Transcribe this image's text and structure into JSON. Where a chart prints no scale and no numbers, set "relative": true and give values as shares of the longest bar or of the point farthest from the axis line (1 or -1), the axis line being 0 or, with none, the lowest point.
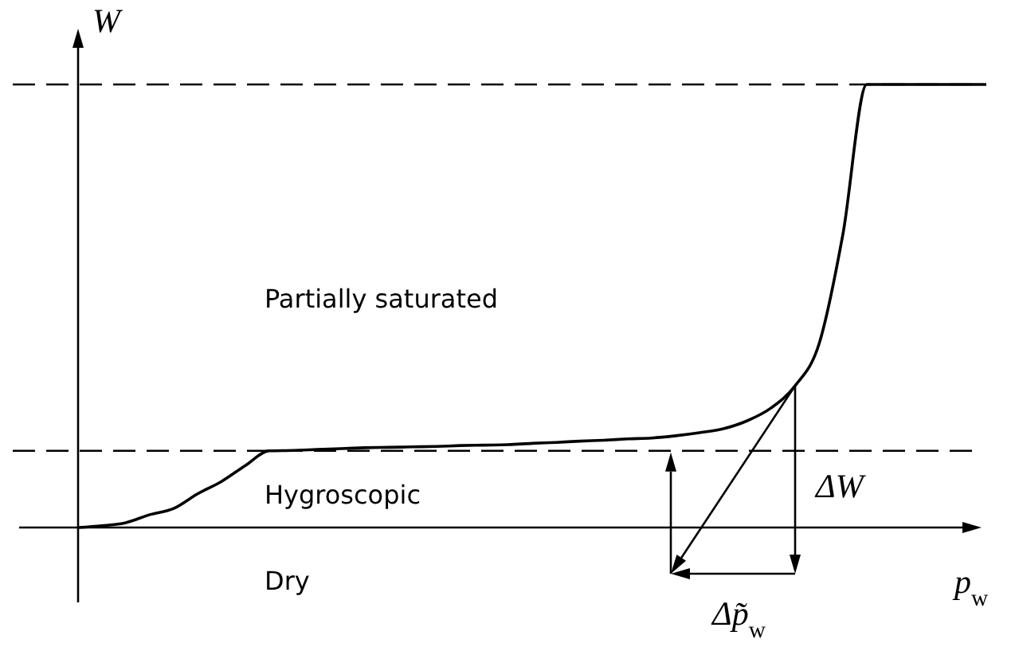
{
  "chart_data": {
    "type": "line",
    "relative": true,
    "xlabel": "p$_{w}$",
    "ylabel": "W",
    "categories": [
      null,
      null,
      null,
      null,
      null,
      null,
      null,
      null,
      null,
      null,
      null,
      null,
      null,
      null,
      null,
      null,
      null,
      null,
      null,
      null,
      null,
      null,
      null,
      null,
      null,
      null,
      null,
      null,
      null,
      null,
      null,
      null,
      null,
      null,
      null,
      null,
      null,
      null,
      null
    ],
    "series": [
      {
        "color": "#000000",
        "values": [
          0,
          0.004,
          0.011,
          0.029,
          0.043,
          0.076,
          0.104,
          0.14,
          0.173,
          0.174,
          0.176,
          0.178,
          0.18,
          0.181,
          0.182,
          0.183,
          0.185,
          0.186,
          0.187,
          0.19,
          0.192,
          0.195,
          0.197,
          0.2,
          0.202,
          0.207,
          0.214,
          0.223,
          0.241,
          0.27,
          0.32,
          0.414,
          0.662,
          1,
          1,
          1,
          1,
          1,
          1
        ]
      }
    ],
    "ref_lines": [
      {
        "axis": "y",
        "value": 1,
        "line_style": "dashed",
        "color": "#000000"
      },
      {
        "axis": "y",
        "value": 0.173,
        "line_style": "dashed",
        "color": "#000000"
      }
    ],
    "annotations": [
      "Partially saturated",
      "Hygroscopic",
      "Dry",
      "ΔW",
      "Δp̃$_{w}$"
    ]
  }
}
